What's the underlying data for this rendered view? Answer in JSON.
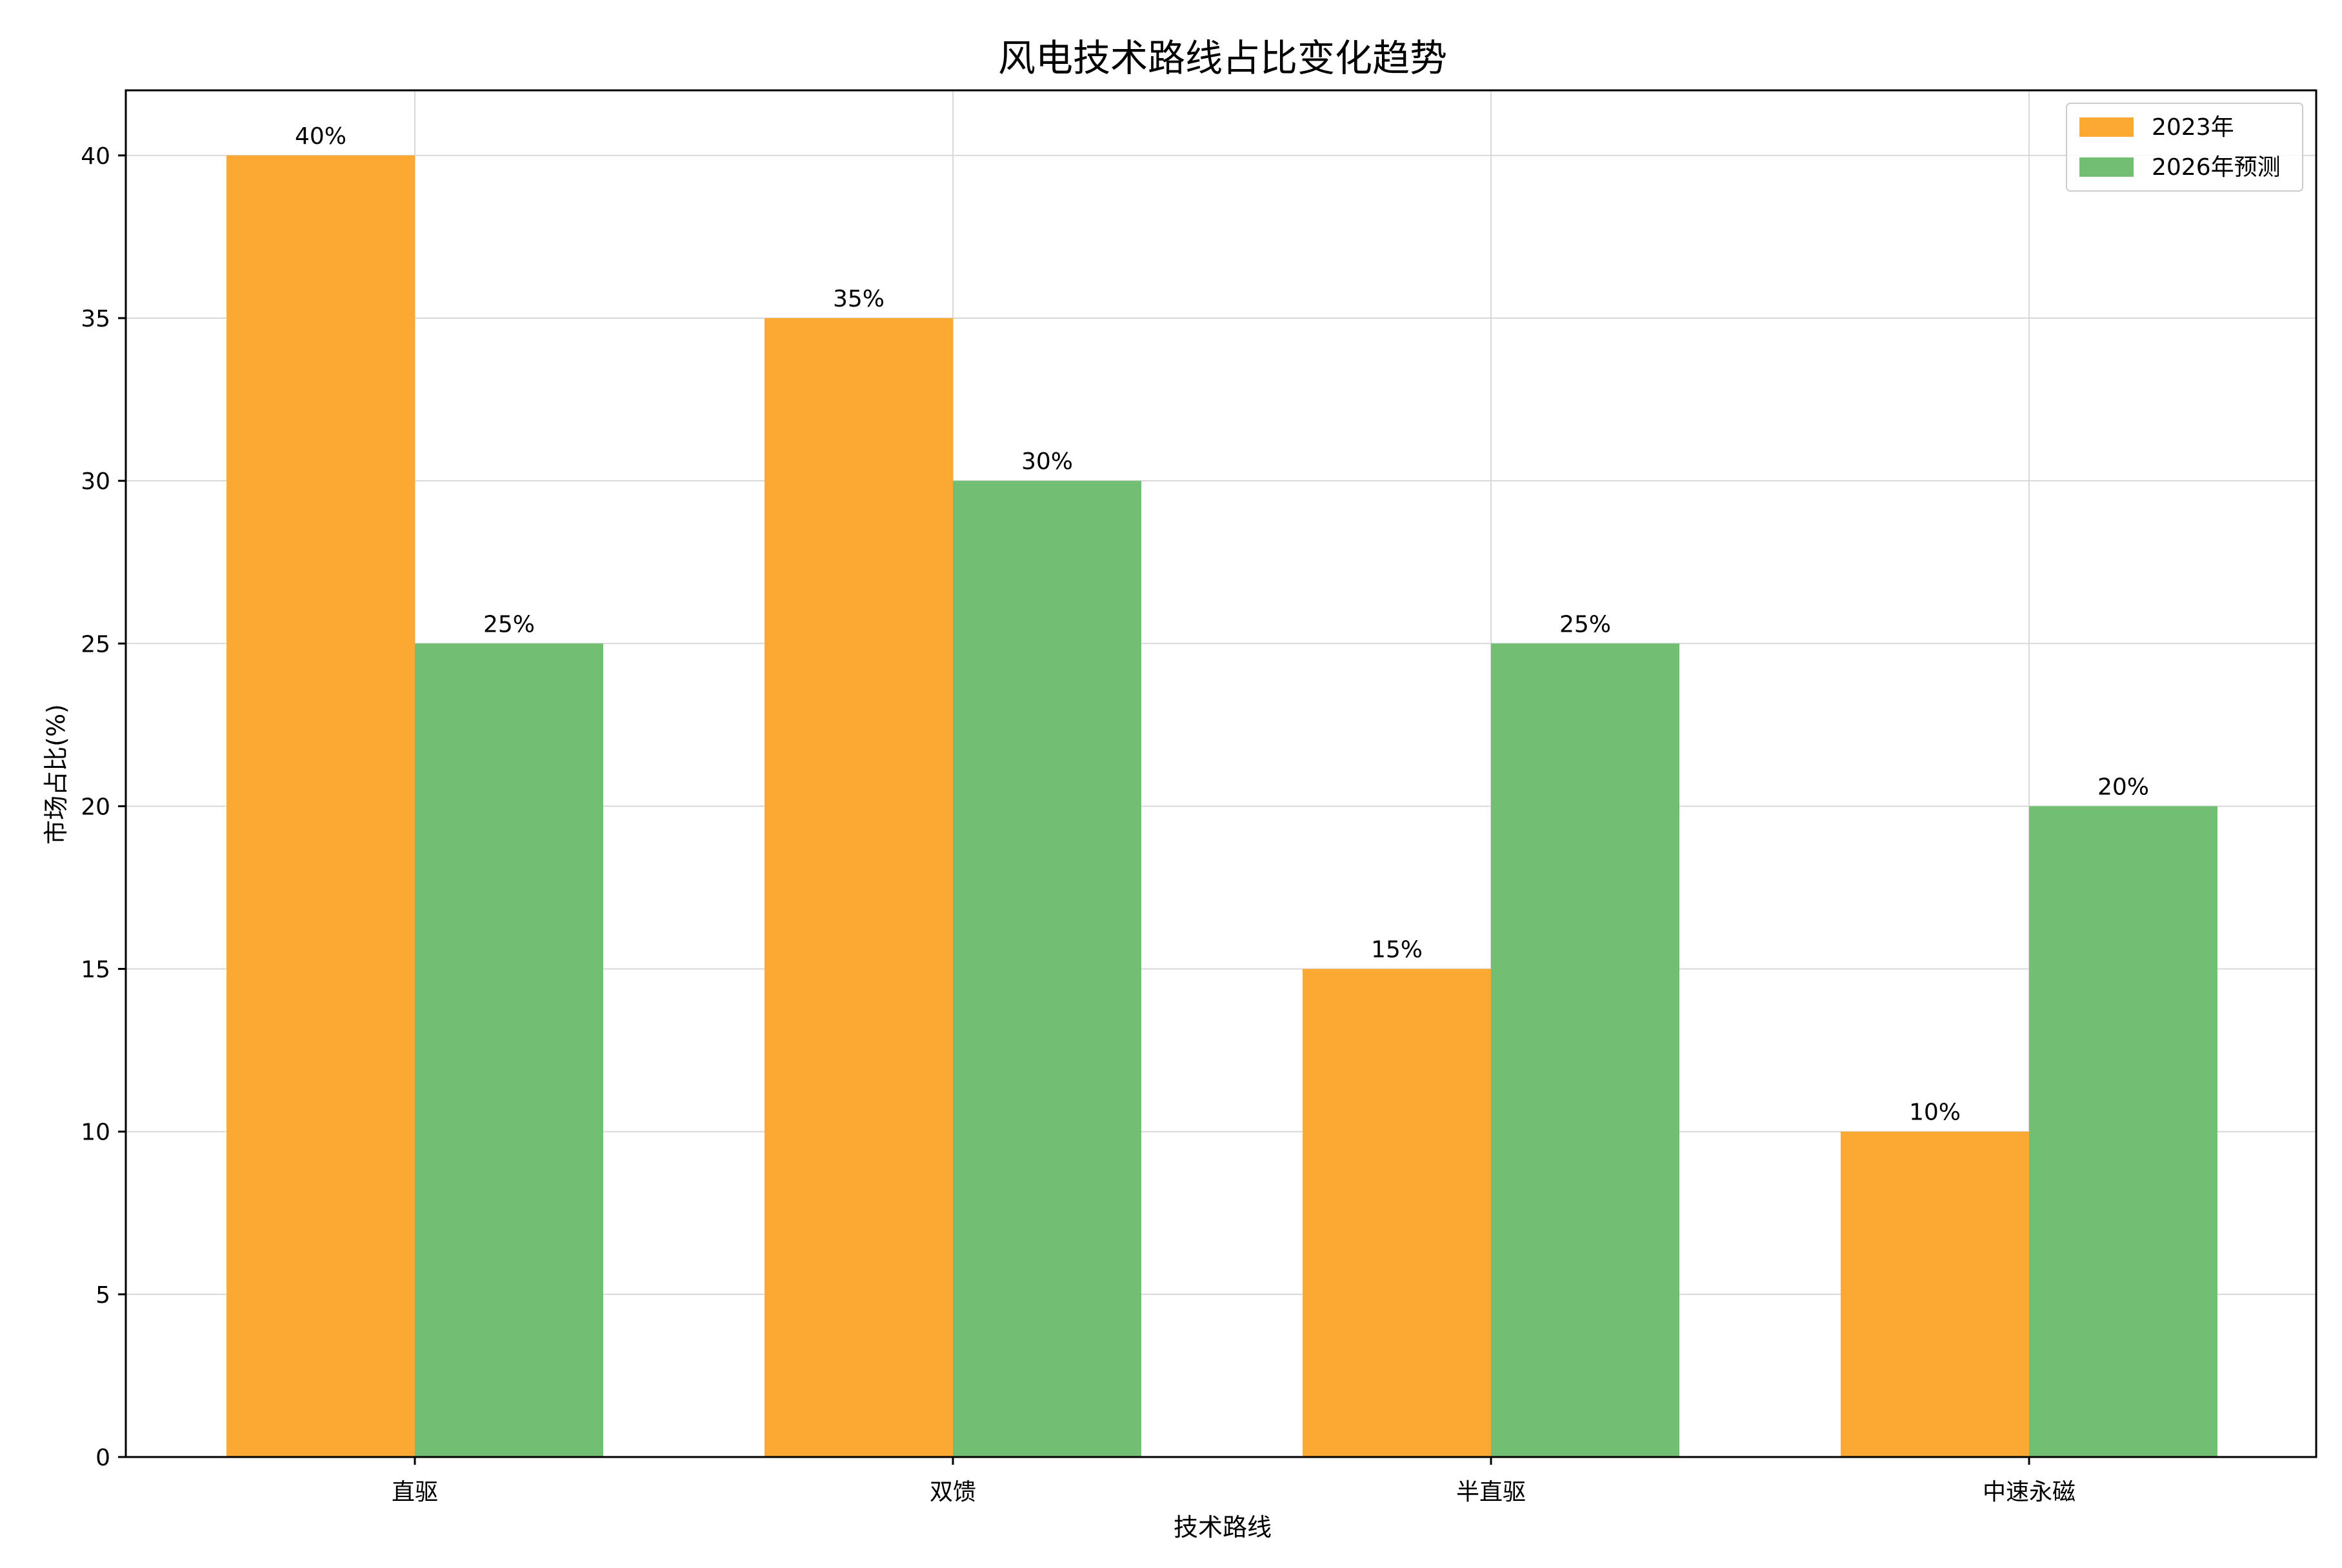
{
  "chart_data": {
    "type": "bar",
    "title": "风电技术路线占比变化趋势",
    "xlabel": "技术路线",
    "ylabel": "市场占比(%)",
    "categories": [
      "直驱",
      "双馈",
      "半直驱",
      "中速永磁"
    ],
    "series": [
      {
        "name": "2023年",
        "values": [
          40,
          35,
          15,
          10
        ],
        "color": "#fca934"
      },
      {
        "name": "2026年预测",
        "values": [
          25,
          30,
          25,
          20
        ],
        "color": "#72bf74"
      }
    ],
    "ylim": [
      0,
      42
    ],
    "yticks": [
      0,
      5,
      10,
      15,
      20,
      25,
      30,
      35,
      40
    ],
    "value_suffix": "%",
    "grid": true,
    "legend_position": "top-right"
  }
}
